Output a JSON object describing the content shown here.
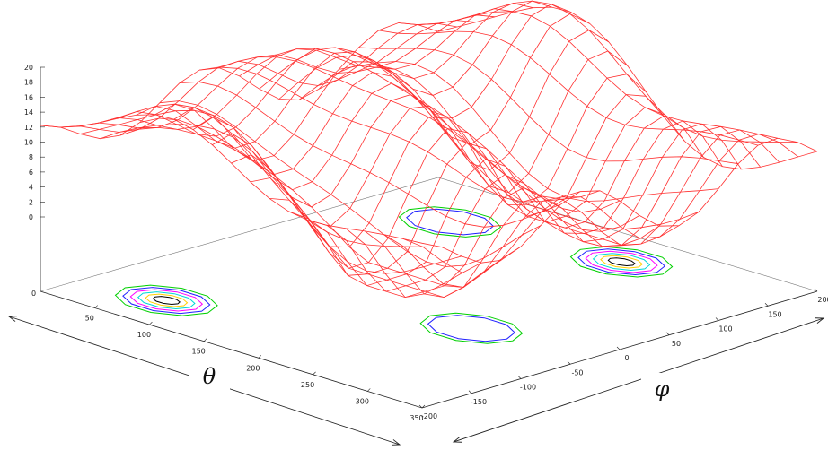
{
  "chart_data": {
    "type": "surface",
    "title": "",
    "xlabel": "θ",
    "ylabel": "φ",
    "zlabel": "",
    "theta_range": [
      0,
      350
    ],
    "phi_range": [
      -200,
      200
    ],
    "z_range": [
      0,
      20
    ],
    "theta_ticks": [
      "50",
      "100",
      "150",
      "200",
      "250",
      "300",
      "350"
    ],
    "phi_ticks": [
      "-200",
      "-150",
      "-100",
      "-50",
      "0",
      "50",
      "100",
      "150",
      "200"
    ],
    "z_ticks": [
      "0",
      "2",
      "4",
      "6",
      "8",
      "10",
      "12",
      "14",
      "16",
      "18",
      "20"
    ],
    "base_axis_label": "0",
    "surface_color": "#ff3030",
    "surface": {
      "grid_theta": [
        0,
        17.5,
        35,
        52.5,
        70,
        87.5,
        105,
        122.5,
        140,
        157.5,
        175,
        192.5,
        210,
        227.5,
        245,
        262.5,
        280,
        297.5,
        315,
        332.5,
        350
      ],
      "grid_phi": [
        -200,
        -180,
        -160,
        -140,
        -120,
        -100,
        -80,
        -60,
        -40,
        -20,
        0,
        20,
        40,
        60,
        80,
        100,
        120,
        140,
        160,
        180,
        200
      ],
      "model": "periodic double-well energy surface with maxima near z=20 and minima near z=0"
    },
    "contours": [
      {
        "center_theta": 70,
        "center_phi": -150,
        "levels": 6
      },
      {
        "center_theta": 250,
        "center_phi": -40,
        "levels": 2
      },
      {
        "center_theta": 75,
        "center_phi": 130,
        "levels": 2
      },
      {
        "center_theta": 215,
        "center_phi": 150,
        "levels": 6
      }
    ],
    "contour_colors": [
      "#00d000",
      "#2020ff",
      "#ff00ff",
      "#00d8d8",
      "#ffd000",
      "#000000",
      "#ff2020"
    ],
    "grid": false,
    "legend": "none"
  }
}
